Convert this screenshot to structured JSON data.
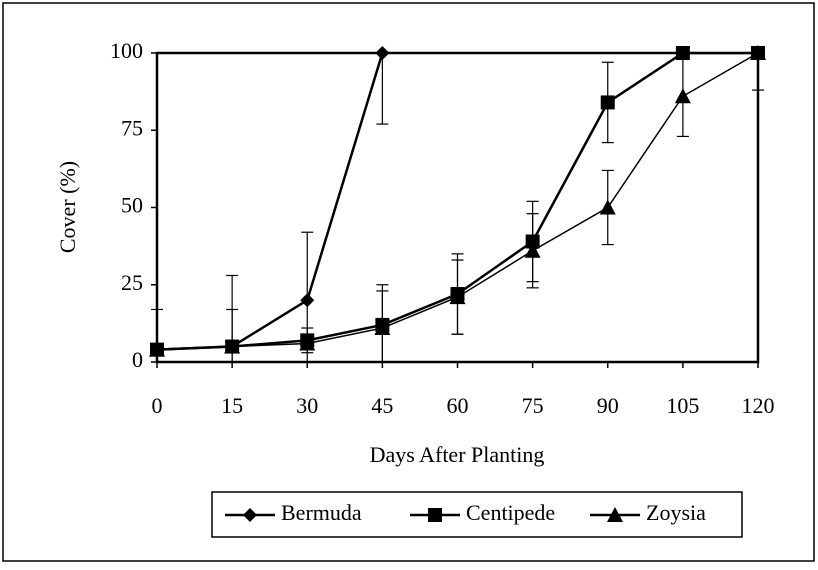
{
  "chart_data": {
    "type": "line",
    "xlabel": "Days After Planting",
    "ylabel": "Cover (%)",
    "x": [
      0,
      15,
      30,
      45,
      60,
      75,
      90,
      105,
      120
    ],
    "xlim": [
      0,
      120
    ],
    "xticks": [
      0,
      15,
      30,
      45,
      60,
      75,
      90,
      105,
      120
    ],
    "ylim": [
      0,
      100
    ],
    "yticks": [
      0,
      25,
      50,
      75,
      100
    ],
    "legend": "bottom",
    "series": [
      {
        "name": "Bermuda",
        "color": "#000000",
        "marker": "diamond",
        "values": [
          4,
          5,
          20,
          100,
          null,
          null,
          null,
          null,
          null
        ],
        "errors": [
          13,
          23,
          22,
          23,
          null,
          null,
          null,
          null,
          null
        ]
      },
      {
        "name": "Centipede",
        "color": "#000000",
        "marker": "square",
        "values": [
          4,
          5,
          7,
          12,
          22,
          39,
          84,
          100,
          100
        ],
        "errors": [
          null,
          12,
          4,
          13,
          13,
          13,
          13,
          null,
          null
        ]
      },
      {
        "name": "Zoysia",
        "color": "#000000",
        "marker": "triangle",
        "values": [
          4,
          5,
          6,
          11,
          21,
          36,
          50,
          86,
          100
        ],
        "errors": [
          null,
          null,
          null,
          12,
          12,
          12,
          12,
          13,
          12
        ]
      }
    ]
  }
}
